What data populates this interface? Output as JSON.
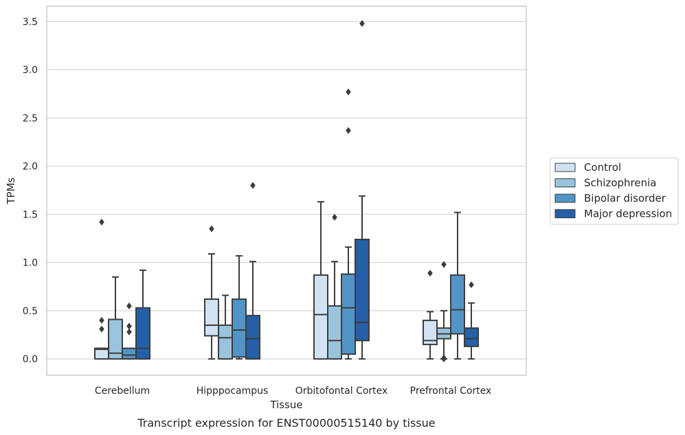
{
  "chart_data": {
    "type": "box",
    "title": "",
    "caption": "Transcript expression for ENST00000515140 by tissue",
    "xlabel": "Tissue",
    "ylabel": "TPMs",
    "ylim": [
      -0.17,
      3.66
    ],
    "yticks": [
      "0.0",
      "0.5",
      "1.0",
      "1.5",
      "2.0",
      "2.5",
      "3.0",
      "3.5"
    ],
    "grid": "horizontal",
    "legend_position": "right",
    "categories": [
      "Cerebellum",
      "Hipppocampus",
      "Orbitofontal Cortex",
      "Prefrontal Cortex"
    ],
    "series": [
      {
        "name": "Control",
        "color": "#d1e2f2",
        "boxes": [
          {
            "whislo": 0.0,
            "q1": 0.0,
            "med": 0.1,
            "q3": 0.11,
            "whishi": 0.11,
            "fliers": [
              1.42,
              0.4,
              0.31
            ]
          },
          {
            "whislo": 0.0,
            "q1": 0.24,
            "med": 0.35,
            "q3": 0.62,
            "whishi": 1.09,
            "fliers": [
              1.35
            ]
          },
          {
            "whislo": 0.0,
            "q1": 0.0,
            "med": 0.46,
            "q3": 0.87,
            "whishi": 1.63,
            "fliers": []
          },
          {
            "whislo": 0.0,
            "q1": 0.15,
            "med": 0.19,
            "q3": 0.4,
            "whishi": 0.49,
            "fliers": [
              0.89
            ]
          }
        ]
      },
      {
        "name": "Schizophrenia",
        "color": "#9ac4de",
        "boxes": [
          {
            "whislo": 0.0,
            "q1": 0.0,
            "med": 0.06,
            "q3": 0.41,
            "whishi": 0.85,
            "fliers": []
          },
          {
            "whislo": 0.0,
            "q1": 0.0,
            "med": 0.22,
            "q3": 0.35,
            "whishi": 0.66,
            "fliers": []
          },
          {
            "whislo": 0.0,
            "q1": 0.0,
            "med": 0.19,
            "q3": 0.55,
            "whishi": 1.01,
            "fliers": [
              1.47
            ]
          },
          {
            "whislo": 0.0,
            "q1": 0.21,
            "med": 0.26,
            "q3": 0.32,
            "whishi": 0.5,
            "fliers": [
              0.98,
              0.01,
              0.0
            ]
          }
        ]
      },
      {
        "name": "Bipolar disorder",
        "color": "#5195c6",
        "boxes": [
          {
            "whislo": 0.0,
            "q1": 0.0,
            "med": 0.04,
            "q3": 0.11,
            "whishi": 0.11,
            "fliers": [
              0.55,
              0.34,
              0.28
            ]
          },
          {
            "whislo": 0.0,
            "q1": 0.02,
            "med": 0.3,
            "q3": 0.62,
            "whishi": 1.07,
            "fliers": []
          },
          {
            "whislo": 0.0,
            "q1": 0.05,
            "med": 0.53,
            "q3": 0.88,
            "whishi": 1.16,
            "fliers": [
              2.77,
              2.37
            ]
          },
          {
            "whislo": 0.0,
            "q1": 0.26,
            "med": 0.51,
            "q3": 0.87,
            "whishi": 1.52,
            "fliers": []
          }
        ]
      },
      {
        "name": "Major depression",
        "color": "#2460a7",
        "boxes": [
          {
            "whislo": 0.0,
            "q1": 0.0,
            "med": 0.11,
            "q3": 0.53,
            "whishi": 0.92,
            "fliers": []
          },
          {
            "whislo": 0.0,
            "q1": 0.0,
            "med": 0.21,
            "q3": 0.45,
            "whishi": 1.01,
            "fliers": [
              1.8
            ]
          },
          {
            "whislo": 0.0,
            "q1": 0.19,
            "med": 0.38,
            "q3": 1.24,
            "whishi": 1.69,
            "fliers": [
              3.48
            ]
          },
          {
            "whislo": 0.0,
            "q1": 0.13,
            "med": 0.21,
            "q3": 0.32,
            "whishi": 0.58,
            "fliers": [
              0.77
            ]
          }
        ]
      }
    ],
    "colors": {
      "grid": "#d5d5d5",
      "frame": "#cccccc",
      "lines": "#3c3c3c"
    }
  }
}
